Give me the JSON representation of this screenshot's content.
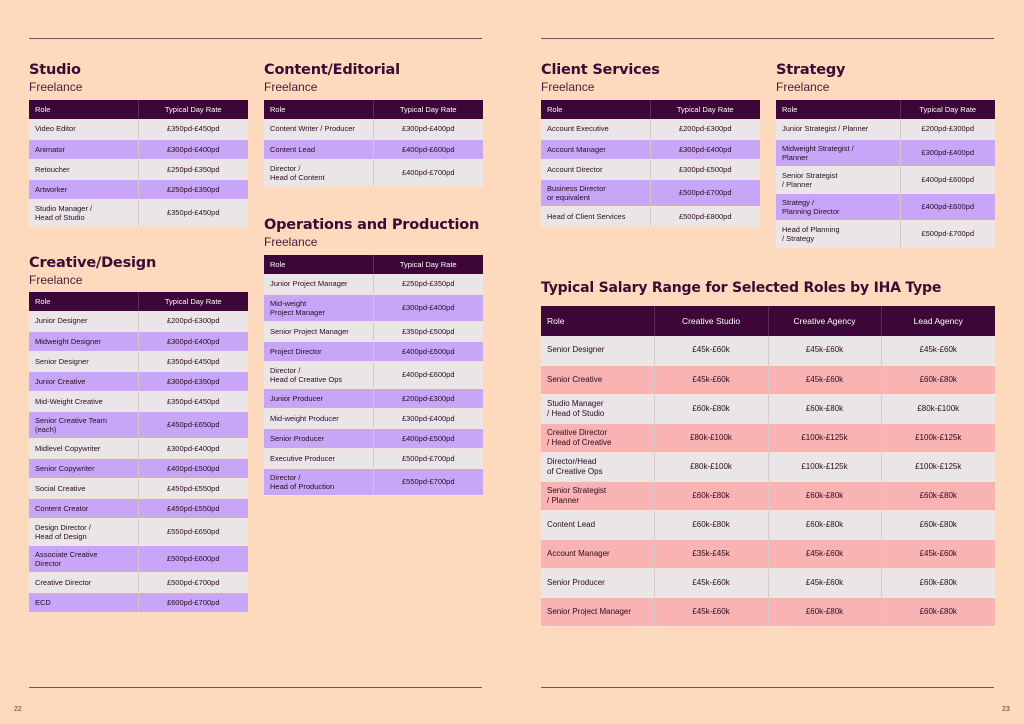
{
  "pages": {
    "left_number": "22",
    "right_number": "23"
  },
  "studio": {
    "title": "Studio",
    "subtitle": "Freelance",
    "head": [
      "Role",
      "Typical Day Rate"
    ],
    "rows": [
      [
        "Video Editor",
        "£350pd-£450pd"
      ],
      [
        "Animator",
        "£300pd-£400pd"
      ],
      [
        "Retoucher",
        "£250pd-£350pd"
      ],
      [
        "Artworker",
        "£250pd-£350pd"
      ],
      [
        "Studio Manager /\nHead of Studio",
        "£350pd-£450pd"
      ]
    ]
  },
  "creative": {
    "title": "Creative/Design",
    "subtitle": "Freelance",
    "head": [
      "Role",
      "Typical Day Rate"
    ],
    "rows": [
      [
        "Junior Designer",
        "£200pd-£300pd"
      ],
      [
        "Midweight Designer",
        "£300pd-£400pd"
      ],
      [
        "Senior Designer",
        "£350pd-£450pd"
      ],
      [
        "Junior Creative",
        "£300pd-£350pd"
      ],
      [
        "Mid-Weight Creative",
        "£350pd-£450pd"
      ],
      [
        "Senior Creative Team\n(each)",
        "£450pd-£650pd"
      ],
      [
        "Midlevel Copywriter",
        "£300pd-£400pd"
      ],
      [
        "Senior Copywriter",
        "£400pd-£500pd"
      ],
      [
        "Social Creative",
        "£450pd-£550pd"
      ],
      [
        "Content Creator",
        "£450pd-£550pd"
      ],
      [
        "Design Director /\nHead of Design",
        "£550pd-£650pd"
      ],
      [
        "Associate Creative\nDirector",
        "£500pd-£600pd"
      ],
      [
        "Creative Director",
        "£500pd-£700pd"
      ],
      [
        "ECD",
        "£600pd-£700pd"
      ]
    ]
  },
  "content": {
    "title": "Content/Editorial",
    "subtitle": "Freelance",
    "head": [
      "Role",
      "Typical Day Rate"
    ],
    "rows": [
      [
        "Content Writer / Producer",
        "£300pd-£400pd"
      ],
      [
        "Content Lead",
        "£400pd-£600pd"
      ],
      [
        "Director /\nHead of Content",
        "£400pd-£700pd"
      ]
    ]
  },
  "operations": {
    "title": "Operations and Production",
    "subtitle": "Freelance",
    "head": [
      "Role",
      "Typical Day Rate"
    ],
    "rows": [
      [
        "Junior Project Manager",
        "£250pd-£350pd"
      ],
      [
        "Mid-weight\nProject Manager",
        "£300pd-£400pd"
      ],
      [
        "Senior Project Manager",
        "£350pd-£500pd"
      ],
      [
        "Project Director",
        "£400pd-£500pd"
      ],
      [
        "Director /\nHead of Creative Ops",
        "£400pd-£600pd"
      ],
      [
        "Junior Producer",
        "£200pd-£300pd"
      ],
      [
        "Mid-weight Producer",
        "£300pd-£400pd"
      ],
      [
        "Senior Producer",
        "£400pd-£500pd"
      ],
      [
        "Executive Producer",
        "£500pd-£700pd"
      ],
      [
        "Director /\nHead of Production",
        "£550pd-£700pd"
      ]
    ]
  },
  "client": {
    "title": "Client Services",
    "subtitle": "Freelance",
    "head": [
      "Role",
      "Typical Day Rate"
    ],
    "rows": [
      [
        "Account Executive",
        "£200pd-£300pd"
      ],
      [
        "Account Manager",
        "£300pd-£400pd"
      ],
      [
        "Account Director",
        "£300pd-£500pd"
      ],
      [
        "Business Director\nor equivalent",
        "£500pd-£700pd"
      ],
      [
        "Head of Client Services",
        "£500pd-£800pd"
      ]
    ]
  },
  "strategy": {
    "title": "Strategy",
    "subtitle": "Freelance",
    "head": [
      "Role",
      "Typical Day Rate"
    ],
    "rows": [
      [
        "Junior Strategist / Planner",
        "£200pd-£300pd"
      ],
      [
        "Midweight Strategist /\nPlanner",
        "£300pd-£400pd"
      ],
      [
        "Senior Strategist\n/ Planner",
        "£400pd-£600pd"
      ],
      [
        "Strategy /\nPlanning Director",
        "£400pd-£600pd"
      ],
      [
        "Head of Planning\n/ Strategy",
        "£500pd-£700pd"
      ]
    ]
  },
  "salary": {
    "title": "Typical Salary Range for Selected Roles by IHA Type",
    "head": [
      "Role",
      "Creative Studio",
      "Creative Agency",
      "Lead Agency"
    ],
    "rows": [
      [
        "Senior Designer",
        "£45k-£60k",
        "£45k-£60k",
        "£45k-£60k"
      ],
      [
        "Senior Creative",
        "£45k-£60k",
        "£45k-£60k",
        "£60k-£80k"
      ],
      [
        "Studio Manager\n/ Head of Studio",
        "£60k-£80k",
        "£60k-£80k",
        "£80k-£100k"
      ],
      [
        "Creative Director\n/ Head of Creative",
        "£80k-£100k",
        "£100k-£125k",
        "£100k-£125k"
      ],
      [
        "Director/Head\nof Creative Ops",
        "£80k-£100k",
        "£100k-£125k",
        "£100k-£125k"
      ],
      [
        "Senior Strategist\n/ Planner",
        "£60k-£80k",
        "£60k-£80k",
        "£60k-£80k"
      ],
      [
        "Content Lead",
        "£60k-£80k",
        "£60k-£80k",
        "£60k-£80k"
      ],
      [
        "Account Manager",
        "£35k-£45k",
        "£45k-£60k",
        "£45k-£60k"
      ],
      [
        "Senior Producer",
        "£45k-£60k",
        "£45k-£60k",
        "£60k-£80k"
      ],
      [
        "Senior Project Manager",
        "£45k-£60k",
        "£60k-£80k",
        "£60k-£80k"
      ]
    ]
  }
}
